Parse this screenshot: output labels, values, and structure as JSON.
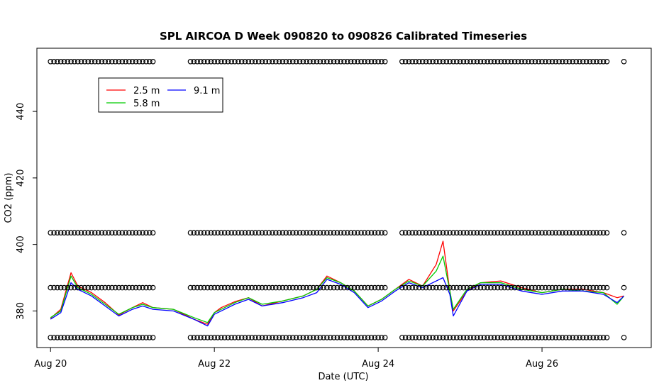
{
  "chart_data": {
    "type": "line",
    "title": "SPL AIRCOA D  Week 090820 to 090826  Calibrated Timeseries",
    "xlabel": "Date (UTC)",
    "ylabel": "CO2 (ppm)",
    "xlim": [
      "2009-08-19T20:00",
      "2009-08-27T08:00"
    ],
    "ylim": [
      369,
      459
    ],
    "x_ticks": [
      {
        "date": "2009-08-20",
        "label": "Aug 20"
      },
      {
        "date": "2009-08-22",
        "label": "Aug 22"
      },
      {
        "date": "2009-08-24",
        "label": "Aug 24"
      },
      {
        "date": "2009-08-26",
        "label": "Aug 26"
      }
    ],
    "y_ticks": [
      380,
      400,
      420,
      440
    ],
    "legend": {
      "placement": "top-left",
      "entries": [
        {
          "label": "2.5 m",
          "color": "#ff0000"
        },
        {
          "label": "5.8 m",
          "color": "#00cc00"
        },
        {
          "label": "9.1 m",
          "color": "#0000ff"
        }
      ]
    },
    "series": [
      {
        "name": "2.5 m",
        "color": "#ff0000",
        "points": [
          [
            "2009-08-20T00:00",
            377.8
          ],
          [
            "2009-08-20T03:00",
            380.5
          ],
          [
            "2009-08-20T06:00",
            391.5
          ],
          [
            "2009-08-20T08:00",
            387.5
          ],
          [
            "2009-08-20T12:00",
            385.5
          ],
          [
            "2009-08-20T16:00",
            382.5
          ],
          [
            "2009-08-20T20:00",
            378.8
          ],
          [
            "2009-08-21T00:00",
            381.0
          ],
          [
            "2009-08-21T03:00",
            382.5
          ],
          [
            "2009-08-21T06:00",
            381.0
          ],
          [
            "2009-08-21T12:00",
            380.5
          ],
          [
            "2009-08-21T18:00",
            377.5
          ],
          [
            "2009-08-21T22:00",
            376.0
          ],
          [
            "2009-08-22T00:00",
            379.5
          ],
          [
            "2009-08-22T02:00",
            381.0
          ],
          [
            "2009-08-22T06:00",
            382.8
          ],
          [
            "2009-08-22T10:00",
            384.0
          ],
          [
            "2009-08-22T14:00",
            381.5
          ],
          [
            "2009-08-22T20:00",
            383.0
          ],
          [
            "2009-08-23T02:00",
            384.5
          ],
          [
            "2009-08-23T06:00",
            386.5
          ],
          [
            "2009-08-23T09:00",
            390.5
          ],
          [
            "2009-08-23T13:00",
            388.5
          ],
          [
            "2009-08-23T17:00",
            386.0
          ],
          [
            "2009-08-23T21:00",
            381.5
          ],
          [
            "2009-08-24T01:00",
            383.5
          ],
          [
            "2009-08-24T05:00",
            386.5
          ],
          [
            "2009-08-24T09:00",
            389.5
          ],
          [
            "2009-08-24T13:00",
            387.5
          ],
          [
            "2009-08-24T17:00",
            394.0
          ],
          [
            "2009-08-24T19:00",
            401.0
          ],
          [
            "2009-08-24T21:00",
            386.0
          ],
          [
            "2009-08-24T22:00",
            380.0
          ],
          [
            "2009-08-25T02:00",
            386.0
          ],
          [
            "2009-08-25T06:00",
            388.5
          ],
          [
            "2009-08-25T12:00",
            389.0
          ],
          [
            "2009-08-25T18:00",
            387.0
          ],
          [
            "2009-08-26T00:00",
            385.5
          ],
          [
            "2009-08-26T06:00",
            386.5
          ],
          [
            "2009-08-26T12:00",
            386.5
          ],
          [
            "2009-08-26T18:00",
            385.5
          ],
          [
            "2009-08-26T22:00",
            384.0
          ],
          [
            "2009-08-27T00:00",
            384.5
          ]
        ]
      },
      {
        "name": "5.8 m",
        "color": "#00cc00",
        "points": [
          [
            "2009-08-20T00:00",
            378.0
          ],
          [
            "2009-08-20T03:00",
            380.0
          ],
          [
            "2009-08-20T06:00",
            390.5
          ],
          [
            "2009-08-20T08:00",
            387.0
          ],
          [
            "2009-08-20T12:00",
            385.0
          ],
          [
            "2009-08-20T16:00",
            382.0
          ],
          [
            "2009-08-20T20:00",
            379.0
          ],
          [
            "2009-08-21T00:00",
            381.0
          ],
          [
            "2009-08-21T03:00",
            382.0
          ],
          [
            "2009-08-21T06:00",
            381.0
          ],
          [
            "2009-08-21T12:00",
            380.5
          ],
          [
            "2009-08-21T18:00",
            378.0
          ],
          [
            "2009-08-21T22:00",
            376.5
          ],
          [
            "2009-08-22T00:00",
            379.5
          ],
          [
            "2009-08-22T02:00",
            380.5
          ],
          [
            "2009-08-22T06:00",
            382.5
          ],
          [
            "2009-08-22T10:00",
            384.0
          ],
          [
            "2009-08-22T14:00",
            382.0
          ],
          [
            "2009-08-22T20:00",
            383.0
          ],
          [
            "2009-08-23T02:00",
            384.5
          ],
          [
            "2009-08-23T06:00",
            386.5
          ],
          [
            "2009-08-23T09:00",
            390.0
          ],
          [
            "2009-08-23T13:00",
            388.5
          ],
          [
            "2009-08-23T17:00",
            386.0
          ],
          [
            "2009-08-23T21:00",
            381.5
          ],
          [
            "2009-08-24T01:00",
            383.5
          ],
          [
            "2009-08-24T05:00",
            386.5
          ],
          [
            "2009-08-24T09:00",
            389.0
          ],
          [
            "2009-08-24T13:00",
            387.5
          ],
          [
            "2009-08-24T17:00",
            392.0
          ],
          [
            "2009-08-24T19:00",
            396.5
          ],
          [
            "2009-08-24T21:00",
            386.0
          ],
          [
            "2009-08-24T22:00",
            380.5
          ],
          [
            "2009-08-25T02:00",
            386.5
          ],
          [
            "2009-08-25T06:00",
            388.5
          ],
          [
            "2009-08-25T12:00",
            388.5
          ],
          [
            "2009-08-25T18:00",
            386.5
          ],
          [
            "2009-08-26T00:00",
            385.5
          ],
          [
            "2009-08-26T06:00",
            386.5
          ],
          [
            "2009-08-26T12:00",
            386.0
          ],
          [
            "2009-08-26T18:00",
            385.5
          ],
          [
            "2009-08-26T22:00",
            382.0
          ],
          [
            "2009-08-27T00:00",
            384.5
          ]
        ]
      },
      {
        "name": "9.1 m",
        "color": "#0000ff",
        "points": [
          [
            "2009-08-20T00:00",
            377.5
          ],
          [
            "2009-08-20T03:00",
            379.5
          ],
          [
            "2009-08-20T06:00",
            388.5
          ],
          [
            "2009-08-20T08:00",
            386.5
          ],
          [
            "2009-08-20T12:00",
            384.5
          ],
          [
            "2009-08-20T16:00",
            381.5
          ],
          [
            "2009-08-20T20:00",
            378.5
          ],
          [
            "2009-08-21T00:00",
            380.5
          ],
          [
            "2009-08-21T03:00",
            381.5
          ],
          [
            "2009-08-21T06:00",
            380.5
          ],
          [
            "2009-08-21T12:00",
            380.0
          ],
          [
            "2009-08-21T18:00",
            377.5
          ],
          [
            "2009-08-21T22:00",
            375.5
          ],
          [
            "2009-08-22T00:00",
            379.0
          ],
          [
            "2009-08-22T02:00",
            380.0
          ],
          [
            "2009-08-22T06:00",
            382.0
          ],
          [
            "2009-08-22T10:00",
            383.5
          ],
          [
            "2009-08-22T14:00",
            381.5
          ],
          [
            "2009-08-22T20:00",
            382.5
          ],
          [
            "2009-08-23T02:00",
            384.0
          ],
          [
            "2009-08-23T06:00",
            385.5
          ],
          [
            "2009-08-23T09:00",
            389.5
          ],
          [
            "2009-08-23T13:00",
            388.0
          ],
          [
            "2009-08-23T17:00",
            385.5
          ],
          [
            "2009-08-23T21:00",
            381.0
          ],
          [
            "2009-08-24T01:00",
            383.0
          ],
          [
            "2009-08-24T05:00",
            386.0
          ],
          [
            "2009-08-24T09:00",
            388.5
          ],
          [
            "2009-08-24T13:00",
            387.0
          ],
          [
            "2009-08-24T17:00",
            389.0
          ],
          [
            "2009-08-24T19:00",
            390.0
          ],
          [
            "2009-08-24T21:00",
            385.0
          ],
          [
            "2009-08-24T22:00",
            378.5
          ],
          [
            "2009-08-25T02:00",
            386.0
          ],
          [
            "2009-08-25T06:00",
            388.0
          ],
          [
            "2009-08-25T12:00",
            388.0
          ],
          [
            "2009-08-25T18:00",
            386.0
          ],
          [
            "2009-08-26T00:00",
            385.0
          ],
          [
            "2009-08-26T06:00",
            386.0
          ],
          [
            "2009-08-26T12:00",
            386.0
          ],
          [
            "2009-08-26T18:00",
            385.0
          ],
          [
            "2009-08-26T22:00",
            382.5
          ],
          [
            "2009-08-27T00:00",
            384.5
          ]
        ]
      }
    ],
    "calibration_markers": {
      "marker": "open-circle",
      "levels": [
        372,
        387,
        403.5,
        455
      ],
      "periods": [
        [
          "2009-08-20T00:00",
          "2009-08-21T06:00"
        ],
        [
          "2009-08-21T17:00",
          "2009-08-24T02:00"
        ],
        [
          "2009-08-24T07:00",
          "2009-08-26T19:00"
        ],
        [
          "2009-08-27T00:00",
          "2009-08-27T00:00"
        ]
      ]
    }
  }
}
